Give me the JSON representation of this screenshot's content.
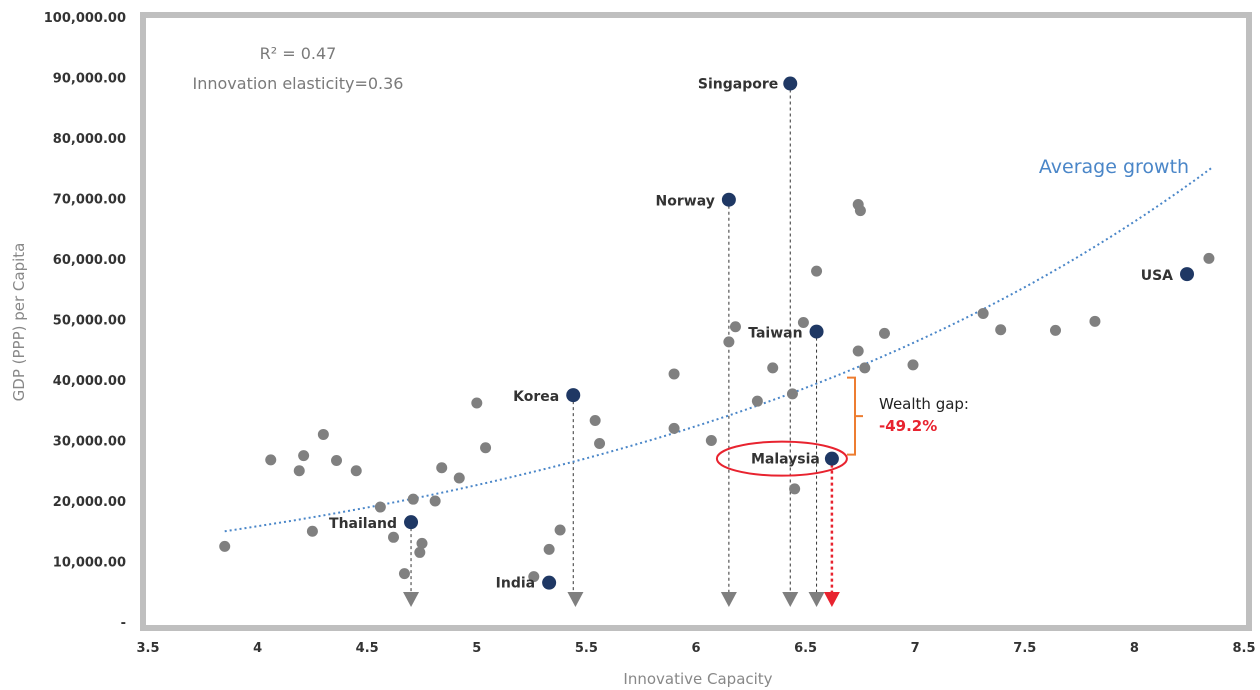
{
  "chart_data": {
    "type": "scatter",
    "xlabel": "Innovative Capacity",
    "ylabel": "GDP (PPP) per Capita",
    "xlim": [
      3.5,
      8.5
    ],
    "ylim": [
      0,
      100000
    ],
    "x_ticks": [
      "3.5",
      "4",
      "4.5",
      "5",
      "5.5",
      "6",
      "6.5",
      "7",
      "7.5",
      "8",
      "8.5"
    ],
    "y_ticks": [
      "-",
      "10,000.00",
      "20,000.00",
      "30,000.00",
      "40,000.00",
      "50,000.00",
      "60,000.00",
      "70,000.00",
      "80,000.00",
      "90,000.00",
      "100,000.00"
    ],
    "grid": false,
    "annotations": {
      "r_squared": "R² = 0.47",
      "elasticity": "Innovation elasticity=0.36",
      "trend_label": "Average growth",
      "wealth_gap_label": "Wealth gap:",
      "wealth_gap_value": "-49.2%"
    },
    "trendline": {
      "type": "exponential",
      "points": [
        [
          3.85,
          15000
        ],
        [
          5.5,
          26500
        ],
        [
          6.5,
          39000
        ],
        [
          7.5,
          55000
        ],
        [
          8.35,
          75000
        ]
      ]
    },
    "highlighted": [
      {
        "label": "Singapore",
        "x": 6.43,
        "y": 89000,
        "drop_line": true
      },
      {
        "label": "Norway",
        "x": 6.15,
        "y": 69800,
        "drop_line": true
      },
      {
        "label": "USA",
        "x": 8.24,
        "y": 57500,
        "drop_line": false
      },
      {
        "label": "Taiwan",
        "x": 6.55,
        "y": 48000,
        "drop_line": true
      },
      {
        "label": "Korea",
        "x": 5.44,
        "y": 37500,
        "drop_line": true
      },
      {
        "label": "Malaysia",
        "x": 6.62,
        "y": 27000,
        "drop_line": true,
        "emphasis": true
      },
      {
        "label": "Thailand",
        "x": 4.7,
        "y": 16500,
        "drop_line": true
      },
      {
        "label": "India",
        "x": 5.33,
        "y": 6500,
        "drop_line": false
      }
    ],
    "other_points": [
      [
        3.85,
        12500
      ],
      [
        4.06,
        26800
      ],
      [
        4.19,
        25000
      ],
      [
        4.21,
        27500
      ],
      [
        4.25,
        15000
      ],
      [
        4.3,
        31000
      ],
      [
        4.36,
        26700
      ],
      [
        4.45,
        25000
      ],
      [
        4.56,
        19000
      ],
      [
        4.62,
        14000
      ],
      [
        4.67,
        8000
      ],
      [
        4.71,
        20300
      ],
      [
        4.74,
        11500
      ],
      [
        4.75,
        13000
      ],
      [
        4.81,
        20000
      ],
      [
        4.84,
        25500
      ],
      [
        4.92,
        23800
      ],
      [
        5.0,
        36200
      ],
      [
        5.04,
        28800
      ],
      [
        5.26,
        7500
      ],
      [
        5.33,
        12000
      ],
      [
        5.38,
        15200
      ],
      [
        5.54,
        33300
      ],
      [
        5.56,
        29500
      ],
      [
        5.9,
        32000
      ],
      [
        5.9,
        41000
      ],
      [
        6.07,
        30000
      ],
      [
        6.15,
        46300
      ],
      [
        6.18,
        48800
      ],
      [
        6.28,
        36500
      ],
      [
        6.35,
        42000
      ],
      [
        6.44,
        37700
      ],
      [
        6.45,
        22000
      ],
      [
        6.49,
        49500
      ],
      [
        6.55,
        58000
      ],
      [
        6.74,
        69000
      ],
      [
        6.75,
        68000
      ],
      [
        6.74,
        44800
      ],
      [
        6.77,
        42000
      ],
      [
        6.86,
        47700
      ],
      [
        6.99,
        42500
      ],
      [
        7.31,
        51000
      ],
      [
        7.39,
        48300
      ],
      [
        7.64,
        48200
      ],
      [
        7.82,
        49700
      ],
      [
        8.34,
        60100
      ]
    ],
    "arrows": [
      {
        "x": 4.7,
        "color": "#7f7f7f"
      },
      {
        "x": 5.45,
        "color": "#7f7f7f"
      },
      {
        "x": 6.15,
        "color": "#7f7f7f"
      },
      {
        "x": 6.43,
        "color": "#7f7f7f"
      },
      {
        "x": 6.55,
        "color": "#7f7f7f"
      },
      {
        "x": 6.62,
        "color": "#e8232f"
      }
    ],
    "colors": {
      "frame": "#bfbfbf",
      "other_points": "#808080",
      "highlighted_points": "#1f3864",
      "trendline": "#4a86c8",
      "wealth_gap_bracket": "#ed7d31",
      "emphasis": "#e8232f"
    }
  }
}
